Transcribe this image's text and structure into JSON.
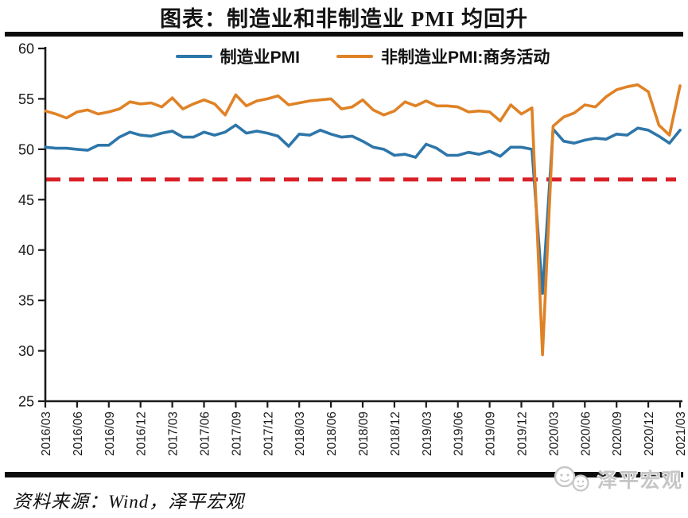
{
  "title": "图表：制造业和非制造业 PMI 均回升",
  "source_note": "资料来源：Wind，泽平宏观",
  "watermark_text": "泽平宏观",
  "colors": {
    "axis": "#1a1a1a",
    "rule": "#0d0d0d",
    "watermark": "#c6c6c6"
  },
  "chart_data": {
    "type": "line",
    "title": "图表：制造业和非制造业 PMI 均回升",
    "xlabel": "",
    "ylabel": "",
    "ylim": [
      25,
      60
    ],
    "y_ticks": [
      60,
      55,
      50,
      45,
      40,
      35,
      30,
      25
    ],
    "grid": false,
    "legend_position": "top",
    "x": [
      "2016/03",
      "2016/04",
      "2016/05",
      "2016/06",
      "2016/07",
      "2016/08",
      "2016/09",
      "2016/10",
      "2016/11",
      "2016/12",
      "2017/01",
      "2017/02",
      "2017/03",
      "2017/04",
      "2017/05",
      "2017/06",
      "2017/07",
      "2017/08",
      "2017/09",
      "2017/10",
      "2017/11",
      "2017/12",
      "2018/01",
      "2018/02",
      "2018/03",
      "2018/04",
      "2018/05",
      "2018/06",
      "2018/07",
      "2018/08",
      "2018/09",
      "2018/10",
      "2018/11",
      "2018/12",
      "2019/01",
      "2019/02",
      "2019/03",
      "2019/04",
      "2019/05",
      "2019/06",
      "2019/07",
      "2019/08",
      "2019/09",
      "2019/10",
      "2019/11",
      "2019/12",
      "2020/01",
      "2020/02",
      "2020/03",
      "2020/04",
      "2020/05",
      "2020/06",
      "2020/07",
      "2020/08",
      "2020/09",
      "2020/10",
      "2020/11",
      "2020/12",
      "2021/01",
      "2021/02",
      "2021/03"
    ],
    "x_tick_labels": [
      "2016/03",
      "2016/06",
      "2016/09",
      "2016/12",
      "2017/03",
      "2017/06",
      "2017/09",
      "2017/12",
      "2018/03",
      "2018/06",
      "2018/09",
      "2018/12",
      "2019/03",
      "2019/06",
      "2019/09",
      "2019/12",
      "2020/03",
      "2020/06",
      "2020/09",
      "2020/12",
      "2021/03"
    ],
    "series": [
      {
        "name": "制造业PMI",
        "color": "#2e76a9",
        "values": [
          50.2,
          50.1,
          50.1,
          50.0,
          49.9,
          50.4,
          50.4,
          51.2,
          51.7,
          51.4,
          51.3,
          51.6,
          51.8,
          51.2,
          51.2,
          51.7,
          51.4,
          51.7,
          52.4,
          51.6,
          51.8,
          51.6,
          51.3,
          50.3,
          51.5,
          51.4,
          51.9,
          51.5,
          51.2,
          51.3,
          50.8,
          50.2,
          50.0,
          49.4,
          49.5,
          49.2,
          50.5,
          50.1,
          49.4,
          49.4,
          49.7,
          49.5,
          49.8,
          49.3,
          50.2,
          50.2,
          50.0,
          35.7,
          52.0,
          50.8,
          50.6,
          50.9,
          51.1,
          51.0,
          51.5,
          51.4,
          52.1,
          51.9,
          51.3,
          50.6,
          51.9
        ]
      },
      {
        "name": "非制造业PMI:商务活动",
        "color": "#df8226",
        "values": [
          53.8,
          53.5,
          53.1,
          53.7,
          53.9,
          53.5,
          53.7,
          54.0,
          54.7,
          54.5,
          54.6,
          54.2,
          55.1,
          54.0,
          54.5,
          54.9,
          54.5,
          53.4,
          55.4,
          54.3,
          54.8,
          55.0,
          55.3,
          54.4,
          54.6,
          54.8,
          54.9,
          55.0,
          54.0,
          54.2,
          54.9,
          53.9,
          53.4,
          53.8,
          54.7,
          54.3,
          54.8,
          54.3,
          54.3,
          54.2,
          53.7,
          53.8,
          53.7,
          52.8,
          54.4,
          53.5,
          54.1,
          29.6,
          52.3,
          53.2,
          53.6,
          54.4,
          54.2,
          55.2,
          55.9,
          56.2,
          56.4,
          55.7,
          52.4,
          51.4,
          56.3
        ]
      }
    ],
    "reference_line": {
      "value": 47,
      "color": "#da2128",
      "style": "dashed"
    }
  }
}
